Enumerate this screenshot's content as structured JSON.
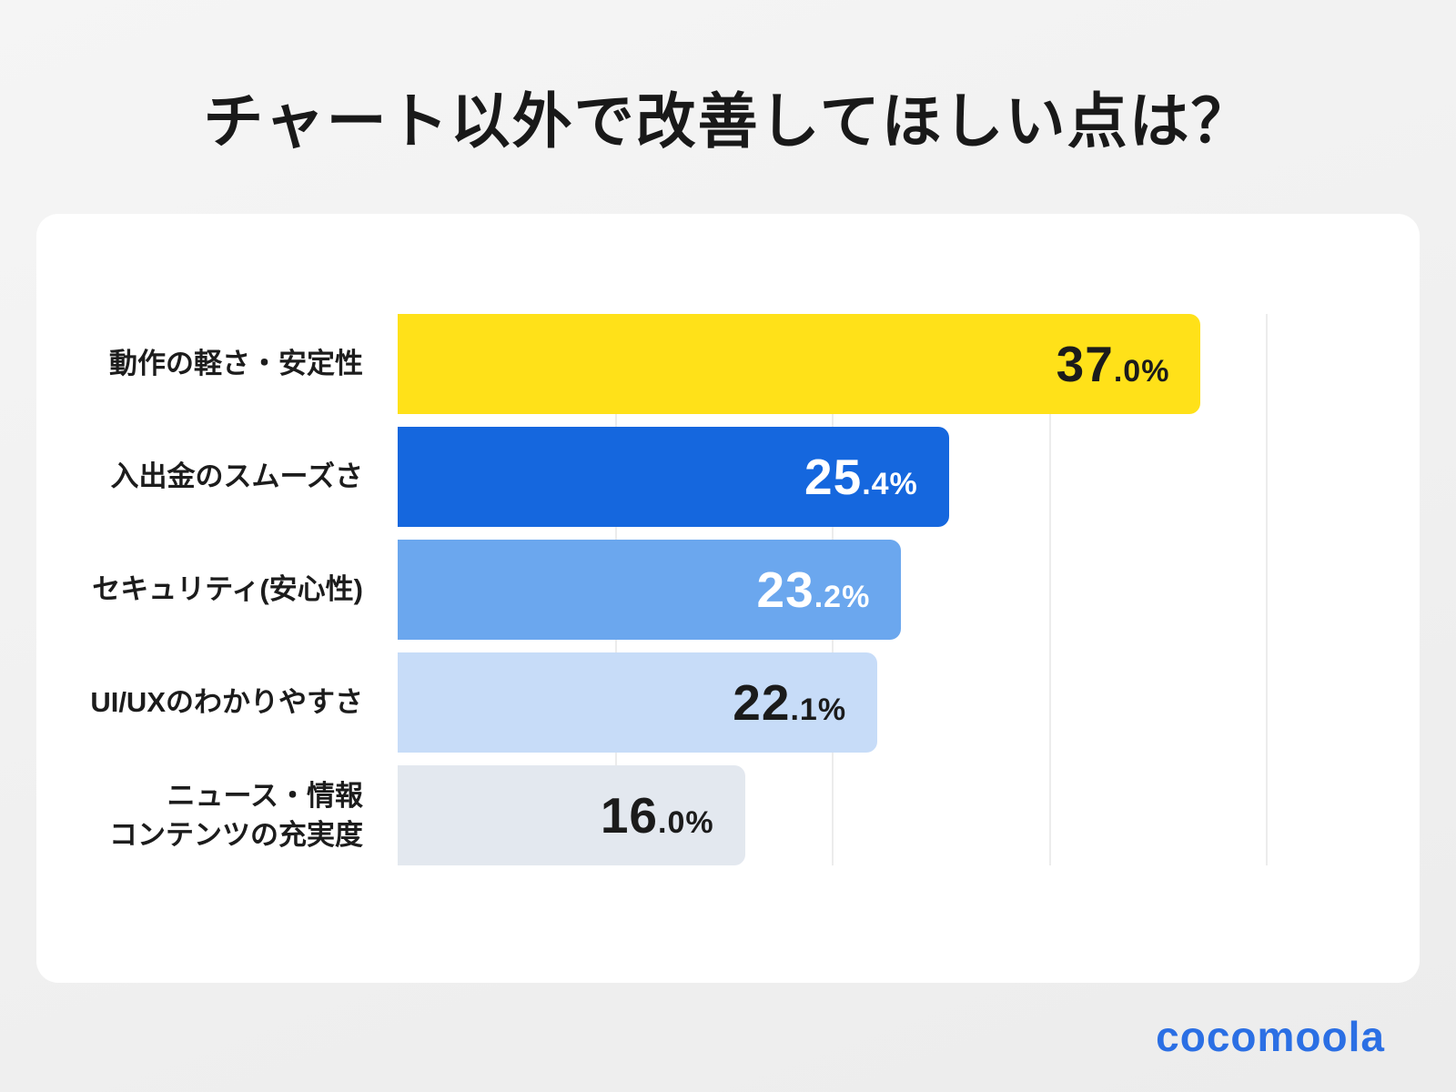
{
  "title": "チャート以外で改善してほしい点は？",
  "logo": "cocomoola",
  "chart_data": {
    "type": "bar",
    "orientation": "horizontal",
    "title": "チャート以外で改善してほしい点は？",
    "categories": [
      "動作の軽さ・安定性",
      "入出金のスムーズさ",
      "セキュリティ(安心性)",
      "UI/UXのわかりやすさ",
      "ニュース・情報\nコンテンツの充実度"
    ],
    "values": [
      37.0,
      25.4,
      23.2,
      22.1,
      16.0
    ],
    "value_labels": [
      {
        "int": "37",
        "dec": ".0%"
      },
      {
        "int": "25",
        "dec": ".4%"
      },
      {
        "int": "23",
        "dec": ".2%"
      },
      {
        "int": "22",
        "dec": ".1%"
      },
      {
        "int": "16",
        "dec": ".0%"
      }
    ],
    "bar_colors": [
      "#FFE119",
      "#1567DE",
      "#6BA7EE",
      "#C7DCF8",
      "#E3E8EF"
    ],
    "value_text_colors": [
      "#1b1b1b",
      "#ffffff",
      "#ffffff",
      "#1b1b1b",
      "#1b1b1b"
    ],
    "xlim": [
      0,
      40
    ],
    "gridline_values": [
      10,
      20,
      30,
      40
    ],
    "grid_color": "#ececec",
    "legend": "none"
  }
}
